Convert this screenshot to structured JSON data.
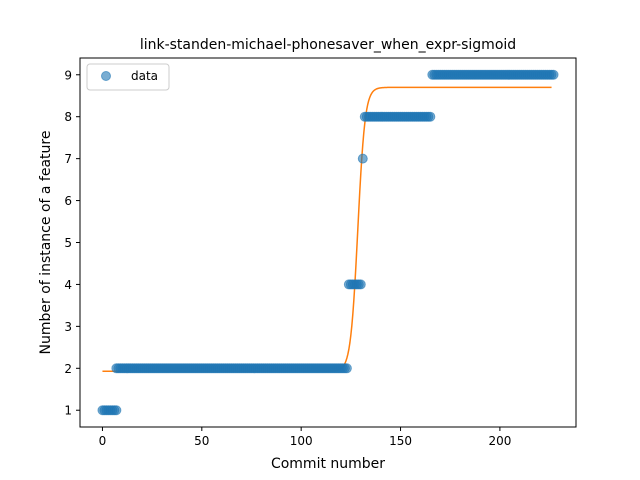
{
  "chart_data": {
    "type": "scatter",
    "title": "link-standen-michael-phonesaver_when_expr-sigmoid",
    "xlabel": "Commit number",
    "ylabel": "Number of instance of a feature",
    "xlim": [
      -11.3,
      238.3
    ],
    "ylim": [
      0.6,
      9.4
    ],
    "xticks": [
      0,
      50,
      100,
      150,
      200
    ],
    "yticks": [
      1,
      2,
      3,
      4,
      5,
      6,
      7,
      8,
      9
    ],
    "legend": {
      "placement": "top-left",
      "entries": [
        "data"
      ]
    },
    "colors": {
      "data": "#1f77b4",
      "fit": "#ff7f0e"
    },
    "series": [
      {
        "name": "data",
        "kind": "scatter",
        "segments": [
          {
            "x_start": 0,
            "x_end": 7,
            "y": 1
          },
          {
            "x_start": 7,
            "x_end": 123,
            "y": 2
          },
          {
            "x_start": 124,
            "x_end": 130,
            "y": 4
          },
          {
            "x_start": 131,
            "x_end": 131,
            "y": 7
          },
          {
            "x_start": 132,
            "x_end": 165,
            "y": 8
          },
          {
            "x_start": 166,
            "x_end": 227,
            "y": 9
          }
        ]
      },
      {
        "kind": "line",
        "model": "sigmoid",
        "lower": 1.93,
        "upper": 8.7,
        "midpoint": 128.5,
        "steepness": 0.55,
        "x_range": [
          0,
          226
        ]
      }
    ]
  }
}
